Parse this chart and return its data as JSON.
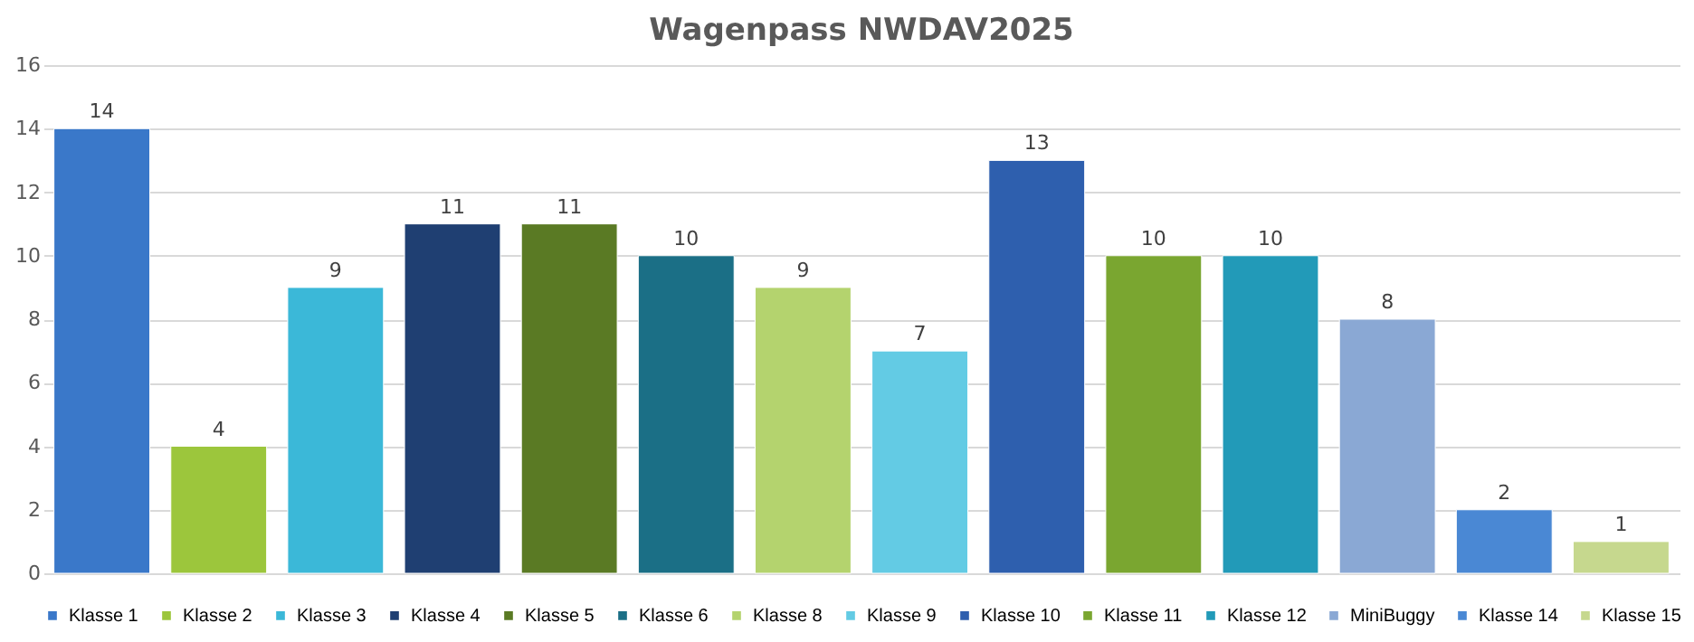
{
  "chart_data": {
    "type": "bar",
    "title": "Wagenpass NWDAV2025",
    "categories": [
      null,
      null,
      null,
      null,
      null,
      null,
      null,
      null,
      null,
      null,
      null,
      null,
      null,
      null
    ],
    "series": [
      {
        "name": "Klasse 1",
        "color": "#3a78c9",
        "values": [
          14,
          null,
          null,
          null,
          null,
          null,
          null,
          null,
          null,
          null,
          null,
          null,
          null,
          null
        ]
      },
      {
        "name": "Klasse 2",
        "color": "#9cc63c",
        "values": [
          null,
          4,
          null,
          null,
          null,
          null,
          null,
          null,
          null,
          null,
          null,
          null,
          null,
          null
        ]
      },
      {
        "name": "Klasse 3",
        "color": "#3bb8d8",
        "values": [
          null,
          null,
          9,
          null,
          null,
          null,
          null,
          null,
          null,
          null,
          null,
          null,
          null,
          null
        ]
      },
      {
        "name": "Klasse 4",
        "color": "#1f3f72",
        "values": [
          null,
          null,
          null,
          11,
          null,
          null,
          null,
          null,
          null,
          null,
          null,
          null,
          null,
          null
        ]
      },
      {
        "name": "Klasse 5",
        "color": "#5a7a24",
        "values": [
          null,
          null,
          null,
          null,
          11,
          null,
          null,
          null,
          null,
          null,
          null,
          null,
          null,
          null
        ]
      },
      {
        "name": "Klasse 6",
        "color": "#1b6f86",
        "values": [
          null,
          null,
          null,
          null,
          null,
          10,
          null,
          null,
          null,
          null,
          null,
          null,
          null,
          null
        ]
      },
      {
        "name": "Klasse 8",
        "color": "#b4d36e",
        "values": [
          null,
          null,
          null,
          null,
          null,
          null,
          9,
          null,
          null,
          null,
          null,
          null,
          null,
          null
        ]
      },
      {
        "name": "Klasse 9",
        "color": "#63cbe4",
        "values": [
          null,
          null,
          null,
          null,
          null,
          null,
          null,
          7,
          null,
          null,
          null,
          null,
          null,
          null
        ]
      },
      {
        "name": "Klasse 10",
        "color": "#2e5fae",
        "values": [
          null,
          null,
          null,
          null,
          null,
          null,
          null,
          null,
          13,
          null,
          null,
          null,
          null,
          null
        ]
      },
      {
        "name": "Klasse 11",
        "color": "#7aa630",
        "values": [
          null,
          null,
          null,
          null,
          null,
          null,
          null,
          null,
          null,
          10,
          null,
          null,
          null,
          null
        ]
      },
      {
        "name": "Klasse 12",
        "color": "#229ab8",
        "values": [
          null,
          null,
          null,
          null,
          null,
          null,
          null,
          null,
          null,
          null,
          10,
          null,
          null,
          null
        ]
      },
      {
        "name": "MiniBuggy",
        "color": "#8aa8d4",
        "values": [
          null,
          null,
          null,
          null,
          null,
          null,
          null,
          null,
          null,
          null,
          null,
          8,
          null,
          null
        ]
      },
      {
        "name": "Klasse 14",
        "color": "#4a88d4",
        "values": [
          null,
          null,
          null,
          null,
          null,
          null,
          null,
          null,
          null,
          null,
          null,
          null,
          2,
          null
        ]
      },
      {
        "name": "Klasse 15",
        "color": "#c6d88e",
        "values": [
          null,
          null,
          null,
          null,
          null,
          null,
          null,
          null,
          null,
          null,
          null,
          null,
          null,
          1
        ]
      }
    ],
    "ylim": [
      0,
      16
    ],
    "yticks": [
      0,
      2,
      4,
      6,
      8,
      10,
      12,
      14,
      16
    ],
    "grid": "y",
    "legend": "bottom",
    "data_labels": true
  }
}
